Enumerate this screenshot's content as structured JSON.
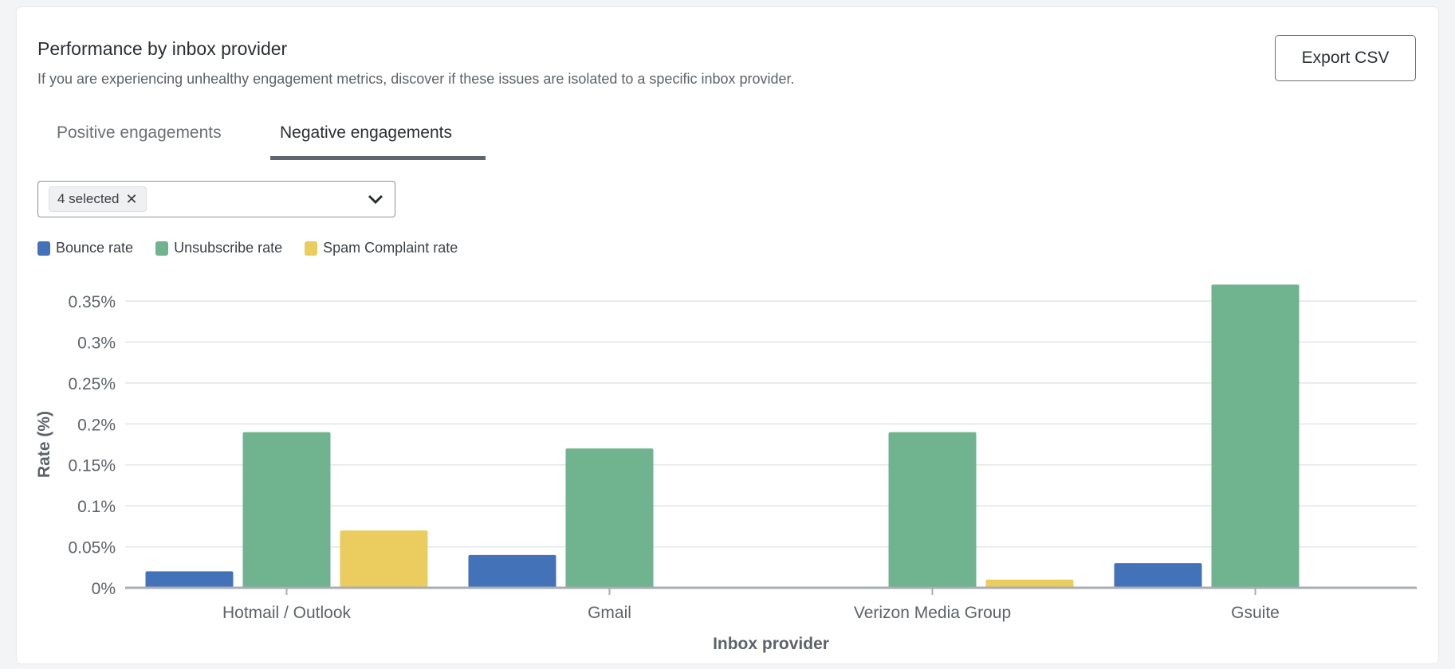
{
  "header": {
    "title": "Performance by inbox provider",
    "subtitle": "If you are experiencing unhealthy engagement metrics, discover if these issues are isolated to a specific inbox provider.",
    "export_label": "Export CSV"
  },
  "tabs": [
    {
      "label": "Positive engagements",
      "active": false
    },
    {
      "label": "Negative engagements",
      "active": true
    }
  ],
  "filter": {
    "chip_label": "4 selected",
    "chip_remove": "✕"
  },
  "chart_data": {
    "type": "bar",
    "xlabel": "Inbox provider",
    "ylabel": "Rate (%)",
    "categories": [
      "Hotmail / Outlook",
      "Gmail",
      "Verizon Media Group",
      "Gsuite"
    ],
    "ylim": [
      0,
      0.35
    ],
    "yticks": [
      0,
      0.05,
      0.1,
      0.15,
      0.2,
      0.25,
      0.3,
      0.35
    ],
    "ytick_labels": [
      "0%",
      "0.05%",
      "0.1%",
      "0.15%",
      "0.2%",
      "0.25%",
      "0.3%",
      "0.35%"
    ],
    "grid": true,
    "legend_position": "top-left",
    "series": [
      {
        "name": "Bounce rate",
        "color": "#4472b8",
        "values": [
          0.02,
          0.04,
          0,
          0.03
        ]
      },
      {
        "name": "Unsubscribe rate",
        "color": "#6fb38f",
        "values": [
          0.19,
          0.17,
          0.19,
          0.37
        ]
      },
      {
        "name": "Spam Complaint rate",
        "color": "#ebcd5f",
        "values": [
          0.07,
          0,
          0.01,
          0
        ]
      }
    ]
  }
}
